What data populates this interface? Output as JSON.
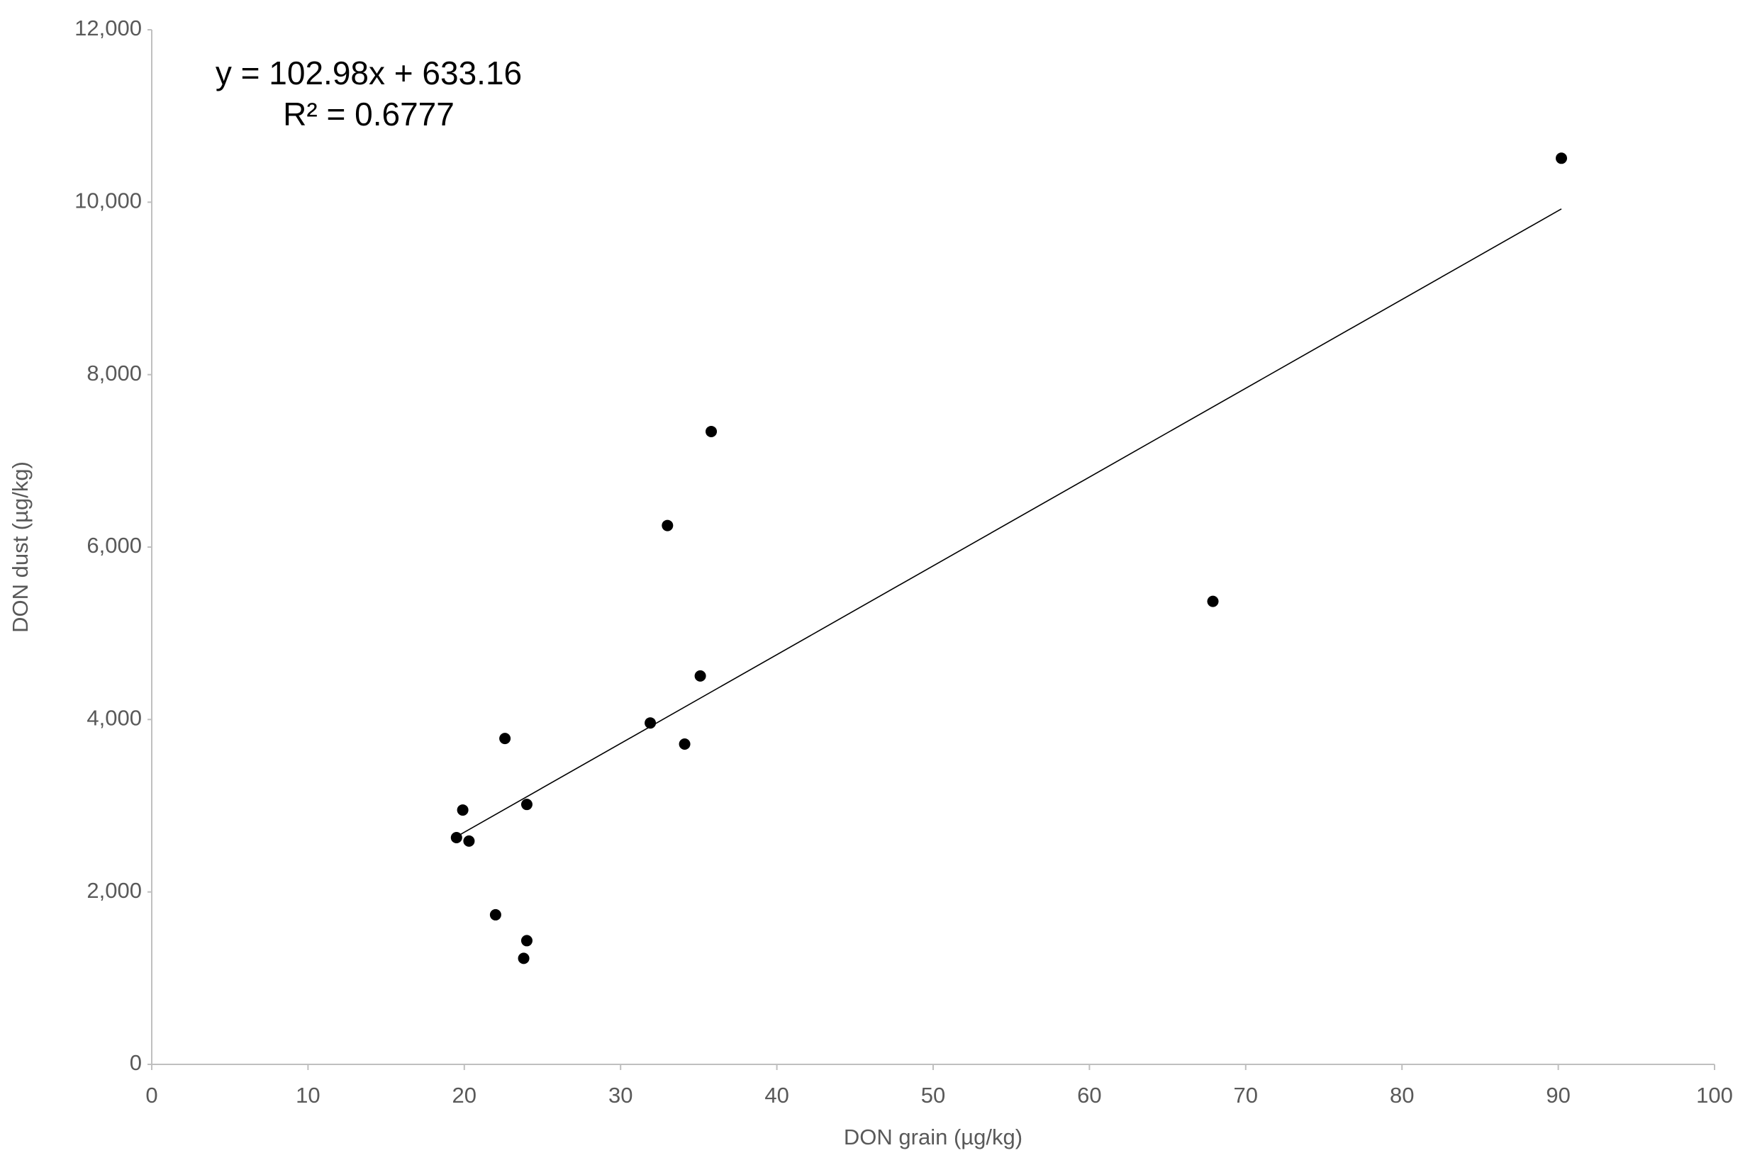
{
  "chart_data": {
    "type": "scatter",
    "x_label": "DON grain (µg/kg)",
    "y_label": "DON dust (µg/kg)",
    "annotations": [
      "y = 102.98x + 633.16",
      "R² = 0.6777"
    ],
    "series": [
      {
        "color": "#000000",
        "x": [
          90.2,
          35.8,
          33.0,
          67.9,
          35.1,
          31.9,
          34.1,
          22.6,
          24.0,
          19.9,
          19.5,
          20.3,
          22.0,
          24.0,
          23.8
        ],
        "values": [
          10510,
          7340,
          6250,
          5370,
          4505,
          3960,
          3715,
          3780,
          3015,
          2950,
          2630,
          2590,
          1735,
          1435,
          1230
        ]
      }
    ],
    "trendline": {
      "color": "#000000",
      "x": [
        19.5,
        90.2
      ],
      "values": [
        2641,
        9922
      ]
    },
    "xlim": [
      0,
      100
    ],
    "xticks": [
      0,
      10,
      20,
      30,
      40,
      50,
      60,
      70,
      80,
      90,
      100
    ],
    "ylim": [
      0,
      12000
    ],
    "yticks": [
      0,
      {
        "value": 2000,
        "label": "2,000"
      },
      {
        "value": 4000,
        "label": "4,000"
      },
      {
        "value": 6000,
        "label": "6,000"
      },
      {
        "value": 8000,
        "label": "8,000"
      },
      {
        "value": 10000,
        "label": "10,000"
      },
      {
        "value": 12000,
        "label": "12,000"
      }
    ],
    "grid": false
  }
}
